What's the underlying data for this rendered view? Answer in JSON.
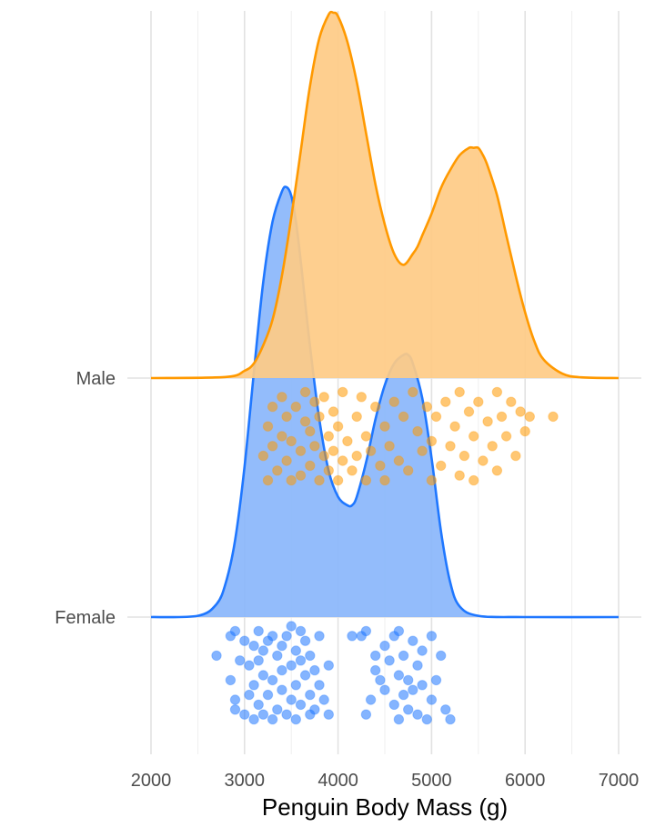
{
  "chart_data": {
    "type": "ridgeline",
    "title": "",
    "xlabel": "Penguin Body Mass (g)",
    "ylabel": "",
    "xlim": [
      2000,
      7000
    ],
    "x_ticks": [
      2000,
      3000,
      4000,
      5000,
      6000,
      7000
    ],
    "x_tick_labels": [
      "2000",
      "3000",
      "4000",
      "5000",
      "6000",
      "7000"
    ],
    "grid": true,
    "legend": "none",
    "series": [
      {
        "name": "Female",
        "color": "#1f77ff",
        "fill": "#8ab6fb",
        "density": {
          "x": [
            2000,
            2500,
            2700,
            2800,
            2900,
            3000,
            3100,
            3200,
            3300,
            3400,
            3450,
            3500,
            3550,
            3600,
            3700,
            3800,
            3900,
            4000,
            4100,
            4150,
            4200,
            4300,
            4400,
            4500,
            4600,
            4700,
            4750,
            4800,
            4900,
            5000,
            5100,
            5200,
            5300,
            5500,
            6000,
            7000
          ],
          "y": [
            0,
            0.003,
            0.03,
            0.08,
            0.18,
            0.35,
            0.57,
            0.78,
            0.92,
            0.99,
            1.0,
            0.98,
            0.92,
            0.83,
            0.63,
            0.46,
            0.34,
            0.28,
            0.26,
            0.26,
            0.28,
            0.36,
            0.46,
            0.54,
            0.59,
            0.61,
            0.61,
            0.59,
            0.51,
            0.37,
            0.2,
            0.08,
            0.025,
            0.003,
            0,
            0
          ]
        },
        "points": [
          [
            2700,
            0.3
          ],
          [
            2850,
            0.55
          ],
          [
            2850,
            0.1
          ],
          [
            2900,
            0.75
          ],
          [
            2900,
            0.85
          ],
          [
            2900,
            0.05
          ],
          [
            2950,
            0.35
          ],
          [
            3000,
            0.9
          ],
          [
            3000,
            0.15
          ],
          [
            3050,
            0.7
          ],
          [
            3050,
            0.4
          ],
          [
            3100,
            0.95
          ],
          [
            3100,
            0.6
          ],
          [
            3100,
            0.2
          ],
          [
            3150,
            0.8
          ],
          [
            3150,
            0.35
          ],
          [
            3150,
            0.05
          ],
          [
            3200,
            0.9
          ],
          [
            3200,
            0.5
          ],
          [
            3200,
            0.25
          ],
          [
            3250,
            0.7
          ],
          [
            3250,
            0.15
          ],
          [
            3300,
            0.95
          ],
          [
            3300,
            0.55
          ],
          [
            3300,
            0.1
          ],
          [
            3350,
            0.85
          ],
          [
            3350,
            0.3
          ],
          [
            3400,
            0.65
          ],
          [
            3400,
            0.2
          ],
          [
            3400,
            0.45
          ],
          [
            3450,
            0.9
          ],
          [
            3450,
            0.1
          ],
          [
            3500,
            0.75
          ],
          [
            3500,
            0.4
          ],
          [
            3500,
            0.0
          ],
          [
            3550,
            0.6
          ],
          [
            3550,
            0.95
          ],
          [
            3550,
            0.25
          ],
          [
            3600,
            0.8
          ],
          [
            3600,
            0.35
          ],
          [
            3600,
            0.05
          ],
          [
            3650,
            0.5
          ],
          [
            3650,
            0.15
          ],
          [
            3700,
            0.9
          ],
          [
            3700,
            0.7
          ],
          [
            3700,
            0.3
          ],
          [
            3750,
            0.45
          ],
          [
            3750,
            0.85
          ],
          [
            3800,
            0.6
          ],
          [
            3800,
            0.1
          ],
          [
            3850,
            0.75
          ],
          [
            3900,
            0.4
          ],
          [
            3900,
            0.9
          ],
          [
            4150,
            0.1
          ],
          [
            4250,
            0.1
          ],
          [
            4300,
            0.05
          ],
          [
            4300,
            0.9
          ],
          [
            4350,
            0.75
          ],
          [
            4400,
            0.3
          ],
          [
            4400,
            0.45
          ],
          [
            4450,
            0.55
          ],
          [
            4500,
            0.2
          ],
          [
            4500,
            0.65
          ],
          [
            4550,
            0.35
          ],
          [
            4600,
            0.8
          ],
          [
            4600,
            0.1
          ],
          [
            4650,
            0.95
          ],
          [
            4650,
            0.5
          ],
          [
            4650,
            0.05
          ],
          [
            4700,
            0.7
          ],
          [
            4700,
            0.3
          ],
          [
            4750,
            0.85
          ],
          [
            4750,
            0.55
          ],
          [
            4800,
            0.65
          ],
          [
            4800,
            0.15
          ],
          [
            4850,
            0.9
          ],
          [
            4850,
            0.4
          ],
          [
            4900,
            0.6
          ],
          [
            4900,
            0.25
          ],
          [
            4950,
            0.95
          ],
          [
            5000,
            0.1
          ],
          [
            5000,
            0.75
          ],
          [
            5050,
            0.55
          ],
          [
            5100,
            0.3
          ],
          [
            5150,
            0.85
          ],
          [
            5200,
            0.95
          ]
        ]
      },
      {
        "name": "Male",
        "color": "#ff9900",
        "fill": "#fecb85",
        "density": {
          "x": [
            2000,
            2800,
            3000,
            3100,
            3200,
            3300,
            3400,
            3500,
            3600,
            3700,
            3800,
            3900,
            3950,
            4000,
            4100,
            4200,
            4300,
            4400,
            4500,
            4600,
            4700,
            4800,
            4850,
            4900,
            5000,
            5100,
            5200,
            5300,
            5400,
            5450,
            5500,
            5550,
            5600,
            5700,
            5800,
            5900,
            6000,
            6100,
            6200,
            6400,
            6600,
            7000
          ],
          "y": [
            0,
            0.003,
            0.02,
            0.04,
            0.09,
            0.16,
            0.28,
            0.44,
            0.62,
            0.8,
            0.93,
            0.995,
            1.0,
            0.99,
            0.92,
            0.81,
            0.67,
            0.53,
            0.42,
            0.34,
            0.31,
            0.34,
            0.36,
            0.39,
            0.45,
            0.52,
            0.57,
            0.61,
            0.63,
            0.63,
            0.63,
            0.61,
            0.58,
            0.5,
            0.39,
            0.28,
            0.18,
            0.1,
            0.05,
            0.012,
            0.002,
            0
          ]
        },
        "points": [
          [
            3250,
            0.95
          ],
          [
            3200,
            0.7
          ],
          [
            3250,
            0.4
          ],
          [
            3300,
            0.6
          ],
          [
            3300,
            0.2
          ],
          [
            3350,
            0.85
          ],
          [
            3400,
            0.5
          ],
          [
            3400,
            0.1
          ],
          [
            3450,
            0.75
          ],
          [
            3450,
            0.3
          ],
          [
            3500,
            0.95
          ],
          [
            3500,
            0.55
          ],
          [
            3550,
            0.2
          ],
          [
            3600,
            0.65
          ],
          [
            3600,
            0.9
          ],
          [
            3650,
            0.35
          ],
          [
            3650,
            0.05
          ],
          [
            3700,
            0.8
          ],
          [
            3700,
            0.45
          ],
          [
            3750,
            0.15
          ],
          [
            3750,
            0.6
          ],
          [
            3800,
            0.95
          ],
          [
            3800,
            0.3
          ],
          [
            3850,
            0.7
          ],
          [
            3850,
            0.1
          ],
          [
            3900,
            0.5
          ],
          [
            3900,
            0.85
          ],
          [
            3950,
            0.25
          ],
          [
            3950,
            0.65
          ],
          [
            4000,
            0.95
          ],
          [
            4000,
            0.4
          ],
          [
            4050,
            0.75
          ],
          [
            4050,
            0.05
          ],
          [
            4100,
            0.55
          ],
          [
            4150,
            0.85
          ],
          [
            4200,
            0.3
          ],
          [
            4200,
            0.7
          ],
          [
            4250,
            0.1
          ],
          [
            4300,
            0.95
          ],
          [
            4300,
            0.5
          ],
          [
            4350,
            0.65
          ],
          [
            4400,
            0.2
          ],
          [
            4450,
            0.8
          ],
          [
            4500,
            0.95
          ],
          [
            4500,
            0.4
          ],
          [
            4550,
            0.6
          ],
          [
            4600,
            0.15
          ],
          [
            4650,
            0.75
          ],
          [
            4700,
            0.3
          ],
          [
            4750,
            0.85
          ],
          [
            4800,
            0.05
          ],
          [
            4850,
            0.45
          ],
          [
            4900,
            0.65
          ],
          [
            4950,
            0.2
          ],
          [
            5000,
            0.55
          ],
          [
            5000,
            0.95
          ],
          [
            5050,
            0.3
          ],
          [
            5100,
            0.8
          ],
          [
            5150,
            0.15
          ],
          [
            5200,
            0.6
          ],
          [
            5250,
            0.4
          ],
          [
            5300,
            0.9
          ],
          [
            5300,
            0.05
          ],
          [
            5350,
            0.7
          ],
          [
            5400,
            0.25
          ],
          [
            5450,
            0.95
          ],
          [
            5450,
            0.5
          ],
          [
            5500,
            0.15
          ],
          [
            5550,
            0.75
          ],
          [
            5600,
            0.35
          ],
          [
            5650,
            0.6
          ],
          [
            5700,
            0.05
          ],
          [
            5700,
            0.85
          ],
          [
            5750,
            0.3
          ],
          [
            5800,
            0.5
          ],
          [
            5850,
            0.15
          ],
          [
            5900,
            0.7
          ],
          [
            5950,
            0.25
          ],
          [
            6000,
            0.45
          ],
          [
            6050,
            0.3
          ],
          [
            6300,
            0.3
          ]
        ]
      }
    ],
    "y_categories": [
      "Female",
      "Male"
    ]
  }
}
